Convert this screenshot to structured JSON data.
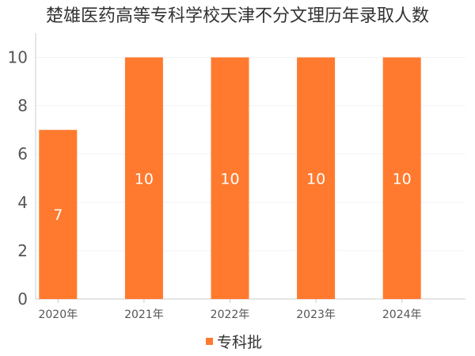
{
  "colors": {
    "bar": "#ff7a2f"
  },
  "chart_data": {
    "type": "bar",
    "title": "楚雄医药高等专科学校天津不分文理历年录取人数",
    "categories": [
      "2020年",
      "2021年",
      "2022年",
      "2023年",
      "2024年"
    ],
    "series": [
      {
        "name": "专科批",
        "values": [
          7,
          10,
          10,
          10,
          10
        ]
      }
    ],
    "data_labels": [
      "7",
      "10",
      "10",
      "10",
      "10"
    ],
    "ylim": [
      0,
      11
    ],
    "yticks": [
      0,
      2,
      4,
      6,
      8,
      10
    ],
    "ytick_labels": [
      "0",
      "2",
      "4",
      "6",
      "8",
      "10"
    ],
    "grid": true,
    "legend_position": "bottom-center"
  }
}
